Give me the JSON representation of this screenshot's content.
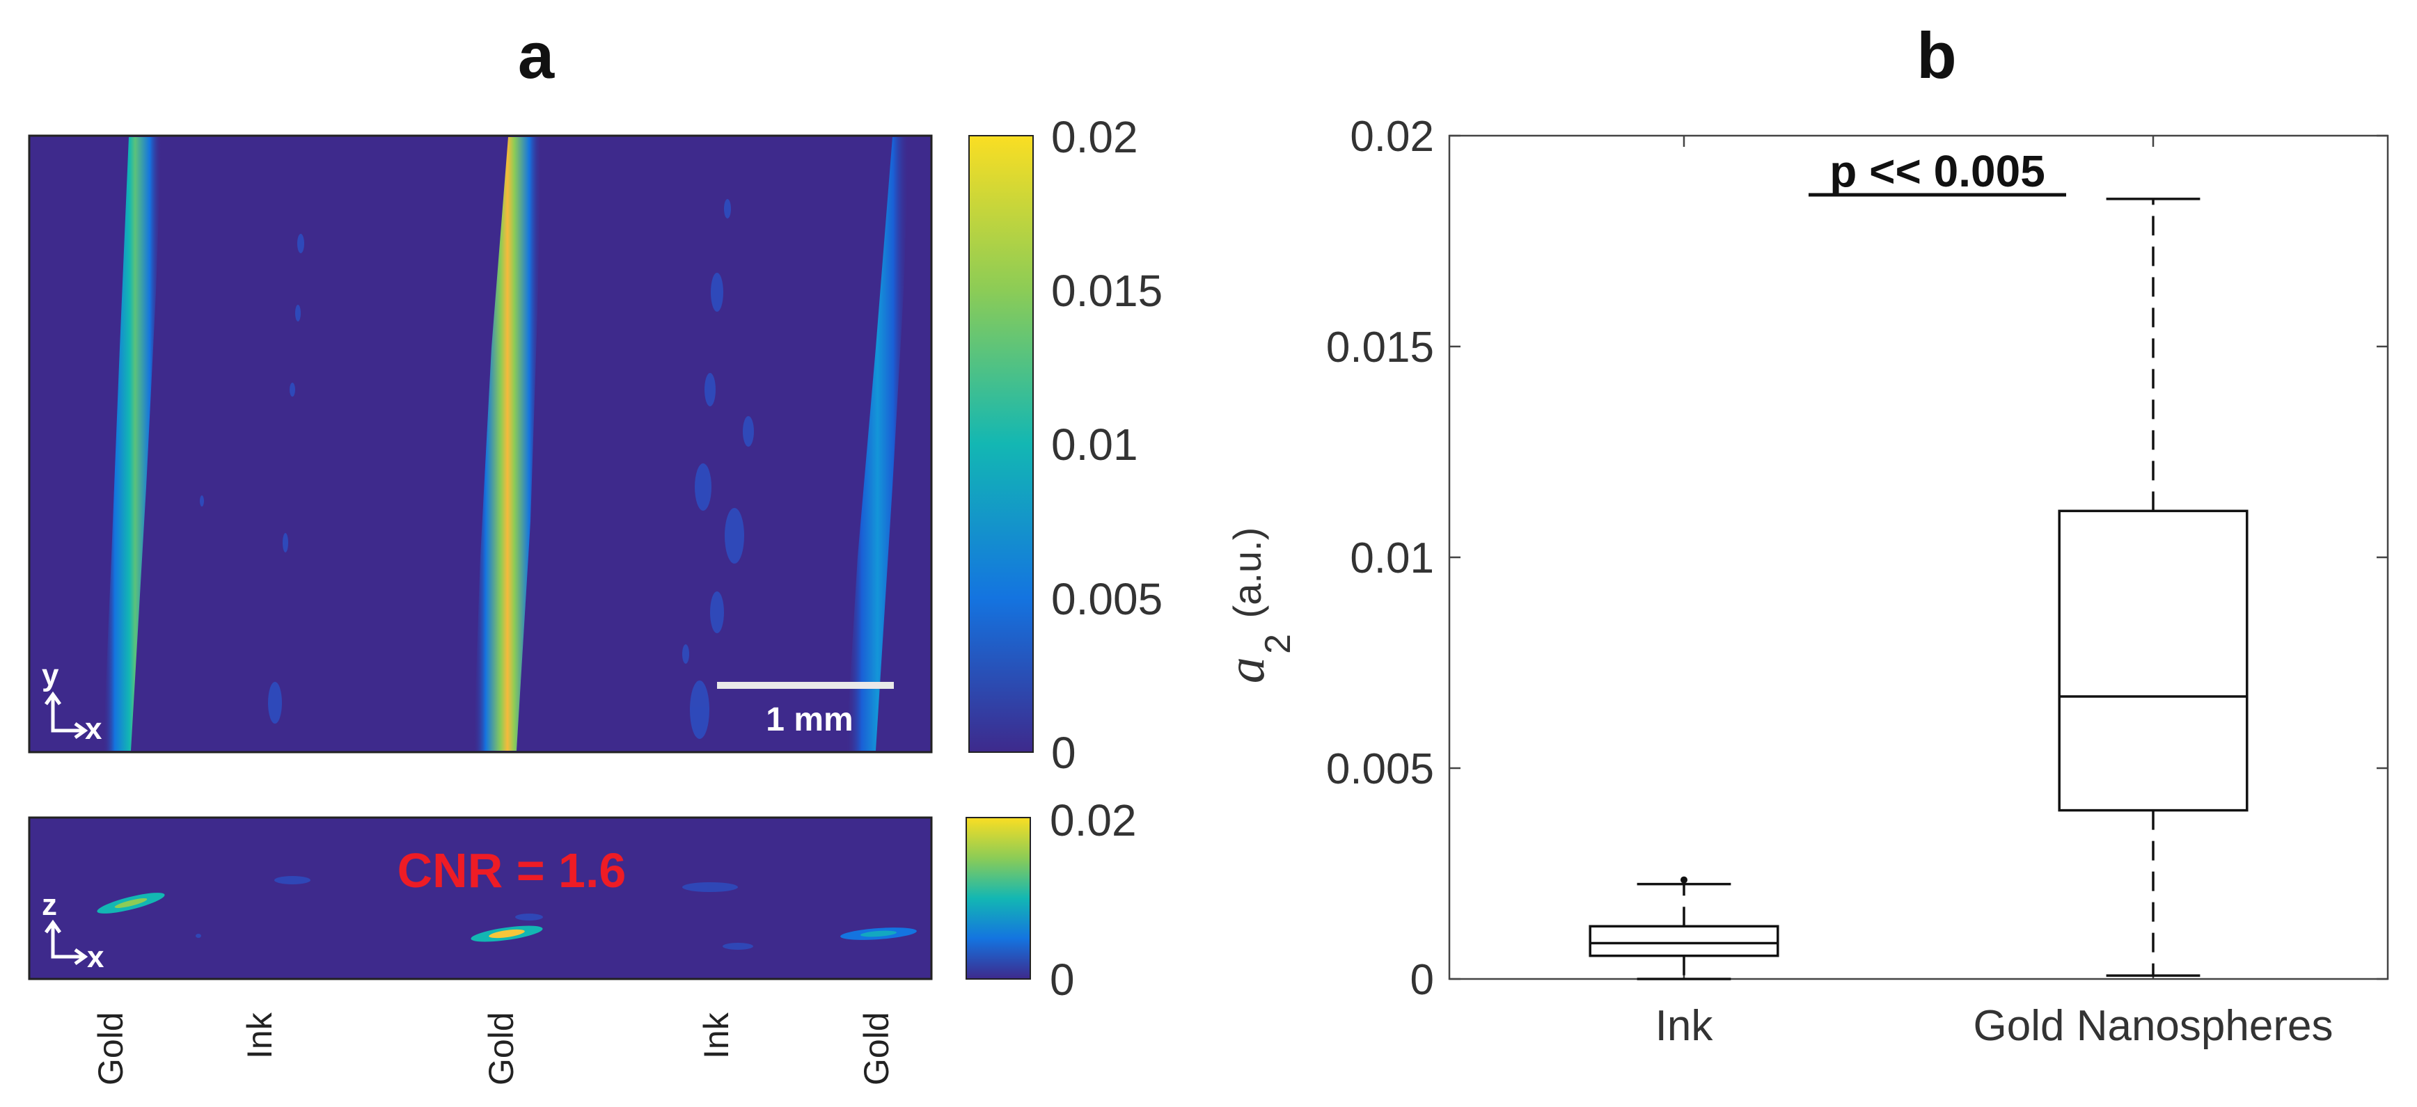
{
  "panel_a": {
    "letter": "a",
    "top_image": {
      "scale_bar_label": "1 mm",
      "axis_indicator": {
        "vertical": "y",
        "horizontal": "x"
      },
      "colorbar": {
        "colors": [
          "#3e2a8c",
          "#1474e0",
          "#13b7b3",
          "#8ccc56",
          "#fade23"
        ],
        "ticks": [
          "0.02",
          "0.015",
          "0.01",
          "0.005",
          "0"
        ]
      }
    },
    "bottom_image": {
      "annotation": "CNR = 1.6",
      "axis_indicator": {
        "vertical": "z",
        "horizontal": "x"
      },
      "colorbar": {
        "ticks": [
          "0.02",
          "0"
        ]
      }
    },
    "sample_labels": [
      "Gold",
      "Ink",
      "Gold",
      "Ink",
      "Gold"
    ],
    "background_color": "#3e2a8c"
  },
  "panel_b": {
    "letter": "b",
    "significance": "p << 0.005",
    "ylabel": {
      "symbol": "a",
      "subscript": "2",
      "unit": "(a.u.)"
    }
  },
  "chart_data": {
    "type": "box",
    "title": "",
    "ylabel": "a2 (a.u.)",
    "ylim": [
      0,
      0.02
    ],
    "yticks": [
      0,
      0.005,
      0.01,
      0.015,
      0.02
    ],
    "ytick_labels": [
      "0",
      "0.005",
      "0.01",
      "0.015",
      "0.02"
    ],
    "categories": [
      "Ink",
      "Gold Nanospheres"
    ],
    "boxes": [
      {
        "name": "Ink",
        "whisker_low": 0.0,
        "q1": 0.00055,
        "median": 0.00085,
        "q3": 0.00125,
        "whisker_high": 0.00225,
        "outliers": [
          0.00235
        ]
      },
      {
        "name": "Gold Nanospheres",
        "whisker_low": 8e-05,
        "q1": 0.004,
        "median": 0.0067,
        "q3": 0.0111,
        "whisker_high": 0.0185,
        "outliers": []
      }
    ],
    "grid": false,
    "legend": "none"
  }
}
